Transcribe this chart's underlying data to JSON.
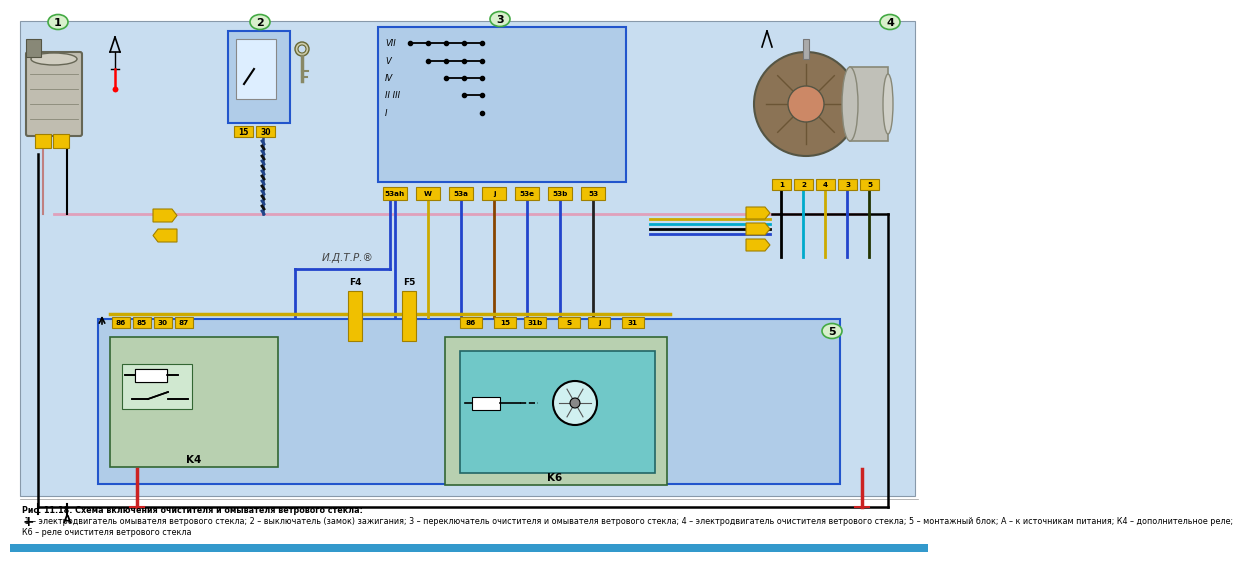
{
  "bg_color": "#f2f0e8",
  "outer_bg": "#ffffff",
  "diag_bg": "#c8ddf0",
  "block_blue": "#b0cce8",
  "relay_green": "#b8d0b0",
  "relay_teal": "#70c8c8",
  "yellow": "#f0c000",
  "yellow_edge": "#a08000",
  "caption_bold": "Рис. 11.18. Схема включения очистителя и омывателя ветрового стекла:",
  "caption_rest": " 1 – электродвигатель омывателя ветрового стекла; 2 – выключатель (замок) зажигания; 3 – переключатель очистителя и омывателя ветрового стекла; 4 – электродвигатель очистителя ветрового стекла; 5 – монтажный блок; А – к источникам питания; К4 – дополнительное реле;",
  "caption_rest2": "К6 – реле очистителя ветрового стекла",
  "watermark": "И.Д.Т.Р.®",
  "pins3": [
    "53ah",
    "W",
    "53a",
    "j",
    "53e",
    "53b",
    "53"
  ],
  "pins5": [
    "86",
    "15",
    "31b",
    "S",
    "j",
    "31"
  ],
  "pins_k4": [
    "86",
    "85",
    "30",
    "87"
  ],
  "pins_m4": [
    "1",
    "2",
    "4",
    "3",
    "5"
  ],
  "switch_rows": [
    "VII",
    "V",
    "IV",
    "II III",
    "I"
  ],
  "fuses": [
    "F4",
    "F5"
  ],
  "wire_pink": "#e8a0b8",
  "wire_blue_dark": "#2244cc",
  "wire_green": "#22aa44",
  "wire_black": "#111111",
  "wire_yellow": "#e8c000",
  "wire_teal": "#00aacc",
  "wire_orange": "#dd8800"
}
